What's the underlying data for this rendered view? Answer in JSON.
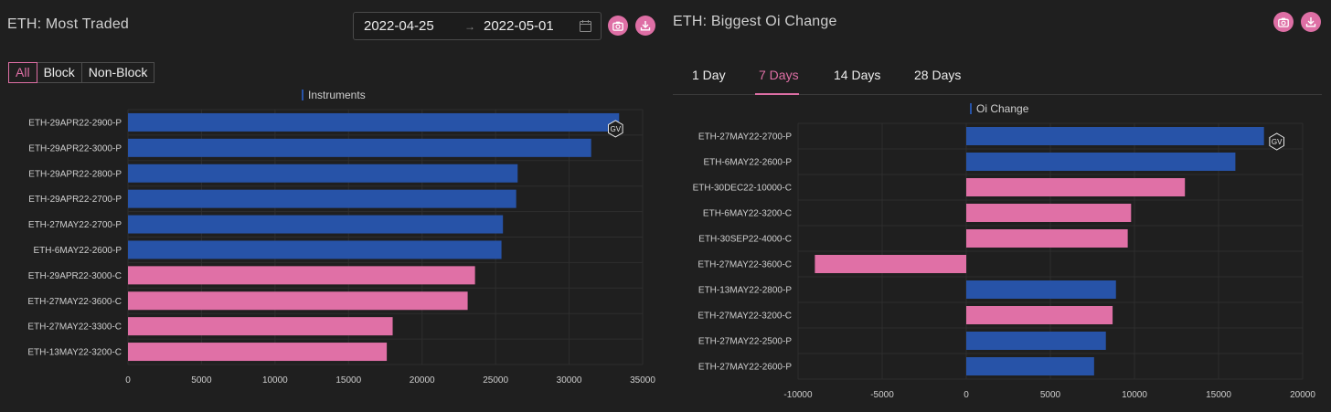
{
  "colors": {
    "background": "#1f1f1f",
    "accent": "#de6fa5",
    "put": "#2753a8",
    "call": "#e070a6",
    "grid": "#2e2e2e"
  },
  "left": {
    "title": "ETH: Most Traded",
    "date_range": {
      "start": "2022-04-25",
      "end": "2022-05-01",
      "separator": "→"
    },
    "buttons": {
      "screenshot_icon": "camera-icon",
      "download_icon": "download-icon"
    },
    "filters": [
      {
        "label": "All",
        "active": true
      },
      {
        "label": "Block",
        "active": false
      },
      {
        "label": "Non-Block",
        "active": false
      }
    ],
    "watermark": "GV"
  },
  "right": {
    "title": "ETH: Biggest Oi Change",
    "buttons": {
      "screenshot_icon": "camera-icon",
      "download_icon": "download-icon"
    },
    "tabs": [
      {
        "label": "1 Day",
        "active": false
      },
      {
        "label": "7 Days",
        "active": true
      },
      {
        "label": "14 Days",
        "active": false
      },
      {
        "label": "28 Days",
        "active": false
      }
    ],
    "watermark": "GV"
  },
  "chart_data": [
    {
      "type": "bar",
      "orientation": "horizontal",
      "legend": "Instruments",
      "legend_position": "top-center",
      "categories": [
        "ETH-29APR22-2900-P",
        "ETH-29APR22-3000-P",
        "ETH-29APR22-2800-P",
        "ETH-29APR22-2700-P",
        "ETH-27MAY22-2700-P",
        "ETH-6MAY22-2600-P",
        "ETH-29APR22-3000-C",
        "ETH-27MAY22-3600-C",
        "ETH-27MAY22-3300-C",
        "ETH-13MAY22-3200-C"
      ],
      "values": [
        33400,
        31500,
        26500,
        26400,
        25500,
        25400,
        23600,
        23100,
        18000,
        17600
      ],
      "xlim": [
        0,
        35000
      ],
      "xticks": [
        0,
        5000,
        10000,
        15000,
        20000,
        25000,
        30000,
        35000
      ],
      "grid": true
    },
    {
      "type": "bar",
      "orientation": "horizontal",
      "legend": "Oi Change",
      "legend_position": "top-center",
      "categories": [
        "ETH-27MAY22-2700-P",
        "ETH-6MAY22-2600-P",
        "ETH-30DEC22-10000-C",
        "ETH-6MAY22-3200-C",
        "ETH-30SEP22-4000-C",
        "ETH-27MAY22-3600-C",
        "ETH-13MAY22-2800-P",
        "ETH-27MAY22-3200-C",
        "ETH-27MAY22-2500-P",
        "ETH-27MAY22-2600-P"
      ],
      "values": [
        17700,
        16000,
        13000,
        9800,
        9600,
        -9000,
        8900,
        8700,
        8300,
        7600
      ],
      "xlim": [
        -10000,
        20000
      ],
      "xticks": [
        -10000,
        -5000,
        0,
        5000,
        10000,
        15000,
        20000
      ],
      "grid": true
    }
  ]
}
